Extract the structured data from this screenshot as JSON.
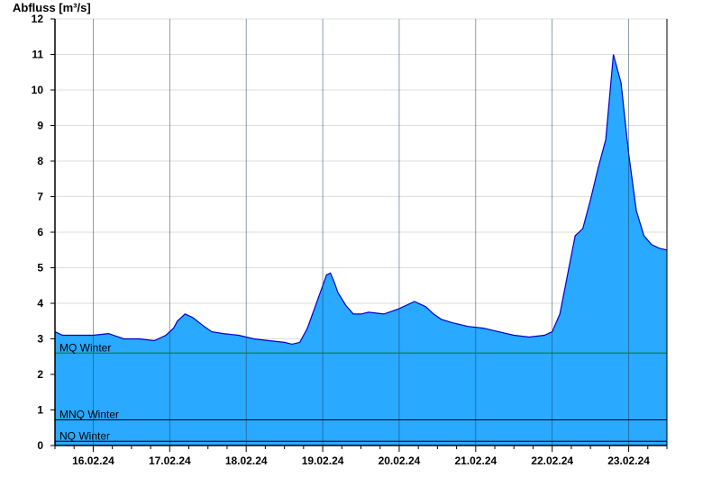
{
  "chart_data": {
    "type": "area",
    "ylabel": "Abfluss [m³/s]",
    "ylim": [
      0,
      12
    ],
    "y_ticks": [
      0,
      1,
      2,
      3,
      4,
      5,
      6,
      7,
      8,
      9,
      10,
      11,
      12
    ],
    "x_ticks": [
      "16.02.24",
      "17.02.24",
      "18.02.24",
      "19.02.24",
      "20.02.24",
      "21.02.24",
      "22.02.24",
      "23.02.24"
    ],
    "x_range_days": [
      15.5,
      23.5
    ],
    "grid": true,
    "reference_lines": [
      {
        "name": "MQ Winter",
        "value": 2.6,
        "color": "#008000"
      },
      {
        "name": "MNQ Winter",
        "value": 0.72,
        "color": "#000000"
      },
      {
        "name": "NQ Winter",
        "value": 0.12,
        "color": "#000000"
      }
    ],
    "colors": {
      "fill": "#29a9ff",
      "line": "#0000cc",
      "grid": "#dddddd"
    },
    "series": [
      {
        "x": [
          15.5,
          15.6,
          15.8,
          16.0,
          16.2,
          16.4,
          16.6,
          16.8,
          16.95,
          17.05,
          17.1,
          17.2,
          17.3,
          17.45,
          17.55,
          17.7,
          17.9,
          18.1,
          18.3,
          18.5,
          18.6,
          18.7,
          18.8,
          18.9,
          19.0,
          19.05,
          19.1,
          19.15,
          19.2,
          19.3,
          19.4,
          19.5,
          19.6,
          19.8,
          20.0,
          20.2,
          20.35,
          20.45,
          20.55,
          20.7,
          20.9,
          21.1,
          21.3,
          21.5,
          21.7,
          21.9,
          22.0,
          22.1,
          22.2,
          22.3,
          22.4,
          22.5,
          22.6,
          22.7,
          22.8,
          22.9,
          23.0,
          23.1,
          23.2,
          23.3,
          23.4,
          23.5
        ],
        "y": [
          3.2,
          3.1,
          3.1,
          3.1,
          3.15,
          3.0,
          3.0,
          2.95,
          3.1,
          3.3,
          3.5,
          3.7,
          3.6,
          3.35,
          3.2,
          3.15,
          3.1,
          3.0,
          2.95,
          2.9,
          2.85,
          2.9,
          3.3,
          3.9,
          4.5,
          4.8,
          4.85,
          4.6,
          4.3,
          3.95,
          3.7,
          3.7,
          3.75,
          3.7,
          3.85,
          4.05,
          3.9,
          3.7,
          3.55,
          3.45,
          3.35,
          3.3,
          3.2,
          3.1,
          3.05,
          3.1,
          3.2,
          3.7,
          4.8,
          5.9,
          6.1,
          6.9,
          7.8,
          8.6,
          11.0,
          10.2,
          8.2,
          6.6,
          5.9,
          5.65,
          5.55,
          5.5
        ]
      }
    ]
  }
}
